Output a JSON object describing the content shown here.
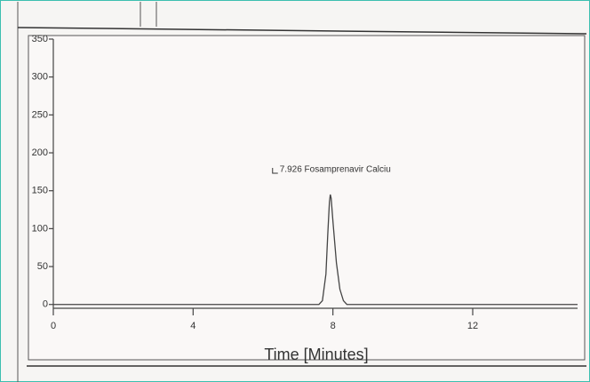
{
  "chart_data": {
    "type": "line",
    "annotation": "7.926 Fosamprenavir Calciu",
    "x_label": "Time  [Minutes]",
    "xlim": [
      0,
      15
    ],
    "xticks": [
      0,
      4,
      8,
      12
    ],
    "ylim": [
      -5,
      350
    ],
    "yticks": [
      0,
      50,
      100,
      150,
      200,
      250,
      300,
      350
    ],
    "series": [
      {
        "color": "#444444",
        "x": [
          0,
          7.6,
          7.7,
          7.8,
          7.85,
          7.9,
          7.926,
          7.95,
          8.0,
          8.1,
          8.2,
          8.3,
          8.4,
          15
        ],
        "values": [
          0,
          0,
          5,
          40,
          90,
          135,
          145,
          140,
          110,
          55,
          20,
          5,
          0,
          0
        ]
      }
    ]
  }
}
